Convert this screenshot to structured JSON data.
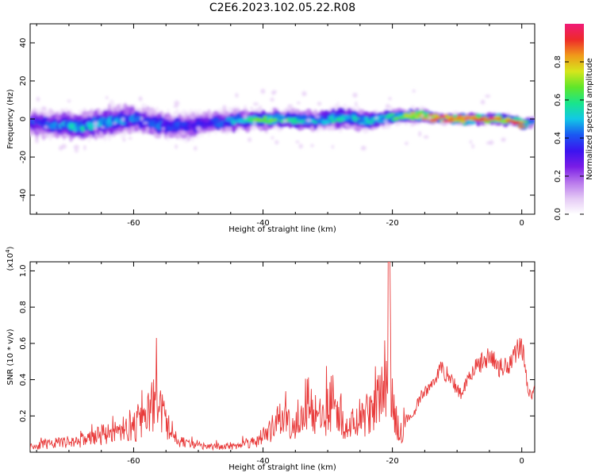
{
  "title": "C2E6.2023.102.05.22.R08",
  "colors": {
    "line": "#e83a3a",
    "axis": "#000000",
    "colormap": [
      "#ffffff",
      "#e4c9f5",
      "#b877ec",
      "#7a1ce6",
      "#3b14ef",
      "#1a58f2",
      "#12c8e6",
      "#19e58c",
      "#5fe62a",
      "#d6e61c",
      "#f09a1a",
      "#ee2a2a",
      "#f01a78"
    ]
  },
  "chart_data": [
    {
      "type": "heatmap",
      "xlabel": "Height of straight line (km)",
      "ylabel": "Frequency (Hz)",
      "xlim": [
        -76,
        2
      ],
      "ylim": [
        -50,
        50
      ],
      "xticks": [
        -60,
        -40,
        -20,
        0
      ],
      "yticks": [
        -40,
        -20,
        0,
        20,
        40
      ],
      "colorbar": {
        "label": "Normalized spectral amplitude",
        "range": [
          0,
          1
        ],
        "ticks": [
          "0.0",
          "0.2",
          "0.4",
          "0.6",
          "0.8"
        ]
      },
      "ridge": {
        "x": [
          -76,
          -72,
          -68,
          -64,
          -60,
          -56,
          -52,
          -48,
          -44,
          -40,
          -36,
          -32,
          -28,
          -24,
          -20,
          -16,
          -12,
          -8,
          -4,
          -1,
          0,
          1
        ],
        "center_hz": [
          -2,
          -3,
          -4,
          -1,
          0,
          -3,
          -4,
          -2,
          -1,
          0,
          0,
          -1,
          1,
          -1,
          1,
          2,
          0,
          0,
          0,
          -1,
          -3,
          -2
        ],
        "amplitude": [
          0.35,
          0.4,
          0.5,
          0.45,
          0.4,
          0.38,
          0.35,
          0.35,
          0.45,
          0.6,
          0.55,
          0.5,
          0.5,
          0.45,
          0.55,
          0.7,
          0.9,
          0.95,
          0.85,
          0.8,
          0.85,
          0.5
        ],
        "spread_hz": [
          6,
          6,
          6,
          7,
          6,
          6,
          6,
          5,
          5,
          4,
          4,
          4,
          5,
          4,
          3,
          3,
          2,
          2,
          2,
          2,
          2,
          2
        ]
      }
    },
    {
      "type": "line",
      "xlabel": "Height of straight line (km)",
      "ylabel": "SNR (10 * v/v)",
      "multiplier": "(x10",
      "multiplier_exp": "4",
      "xlim": [
        -76,
        2
      ],
      "ylim": [
        0,
        1.05
      ],
      "xticks": [
        -60,
        -40,
        -20,
        0
      ],
      "yticks": [
        "0.2",
        "0.4",
        "0.6",
        "0.8",
        "1.0"
      ],
      "series": [
        {
          "x": [
            -76,
            -72,
            -68,
            -65,
            -62,
            -60,
            -58,
            -56.5,
            -55,
            -53,
            -50,
            -47,
            -44,
            -41,
            -39,
            -37,
            -35,
            -33,
            -31,
            -29,
            -27,
            -25,
            -23,
            -21.5,
            -21,
            -20.5,
            -20,
            -19,
            -17,
            -15.5,
            -14,
            -12.5,
            -11,
            -9.5,
            -8,
            -6.5,
            -5,
            -3.5,
            -2,
            -1,
            0,
            0.5,
            1,
            2
          ],
          "values": [
            0.05,
            0.08,
            0.1,
            0.15,
            0.2,
            0.22,
            0.3,
            0.48,
            0.25,
            0.1,
            0.05,
            0.05,
            0.06,
            0.1,
            0.18,
            0.3,
            0.25,
            0.45,
            0.28,
            0.5,
            0.2,
            0.3,
            0.35,
            0.55,
            0.75,
            1.05,
            0.4,
            0.18,
            0.2,
            0.32,
            0.38,
            0.48,
            0.42,
            0.33,
            0.45,
            0.5,
            0.55,
            0.48,
            0.5,
            0.57,
            0.62,
            0.5,
            0.32,
            0.35
          ]
        }
      ]
    }
  ]
}
